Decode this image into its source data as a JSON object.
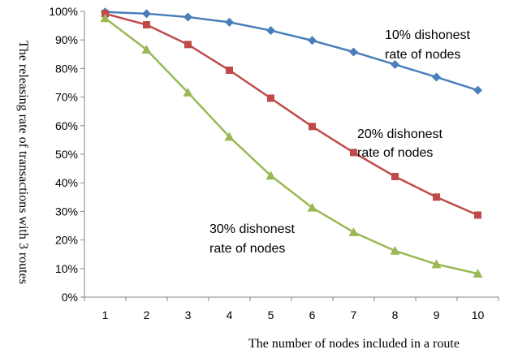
{
  "chart_data": {
    "type": "line",
    "title": "",
    "xlabel": "The number of nodes included in a route",
    "ylabel": "The releasing rate of transactions with 3 routes",
    "x": [
      1,
      2,
      3,
      4,
      5,
      6,
      7,
      8,
      9,
      10
    ],
    "xlim": [
      0.5,
      10.5
    ],
    "ylim": [
      0,
      100
    ],
    "y_ticks": [
      "0%",
      "10%",
      "20%",
      "30%",
      "40%",
      "50%",
      "60%",
      "70%",
      "80%",
      "90%",
      "100%"
    ],
    "y_tick_values": [
      0,
      10,
      20,
      30,
      40,
      50,
      60,
      70,
      80,
      90,
      100
    ],
    "x_ticks": [
      "1",
      "2",
      "3",
      "4",
      "5",
      "6",
      "7",
      "8",
      "9",
      "10"
    ],
    "grid": false,
    "legend": "none",
    "series": [
      {
        "name": "10% dishonest rate of nodes",
        "values": [
          99.8,
          99.2,
          98.0,
          96.2,
          93.3,
          89.8,
          85.8,
          81.4,
          77.0,
          72.4
        ],
        "color": "#4a7ebb",
        "marker": "diamond"
      },
      {
        "name": "20% dishonest rate of nodes",
        "values": [
          99.2,
          95.3,
          88.4,
          79.4,
          69.6,
          59.7,
          50.6,
          42.2,
          35.0,
          28.7
        ],
        "color": "#be4b48",
        "marker": "square"
      },
      {
        "name": "30% dishonest rate of nodes",
        "values": [
          97.6,
          86.6,
          71.6,
          56.1,
          42.5,
          31.3,
          22.7,
          16.2,
          11.5,
          8.2
        ],
        "color": "#98b954",
        "marker": "triangle"
      }
    ],
    "annotations": [
      {
        "line1": "10% dishonest",
        "line2": "rate of nodes"
      },
      {
        "line1": "20% dishonest",
        "line2": "rate of nodes"
      },
      {
        "line1": "30% dishonest",
        "line2": "rate of nodes"
      }
    ]
  }
}
